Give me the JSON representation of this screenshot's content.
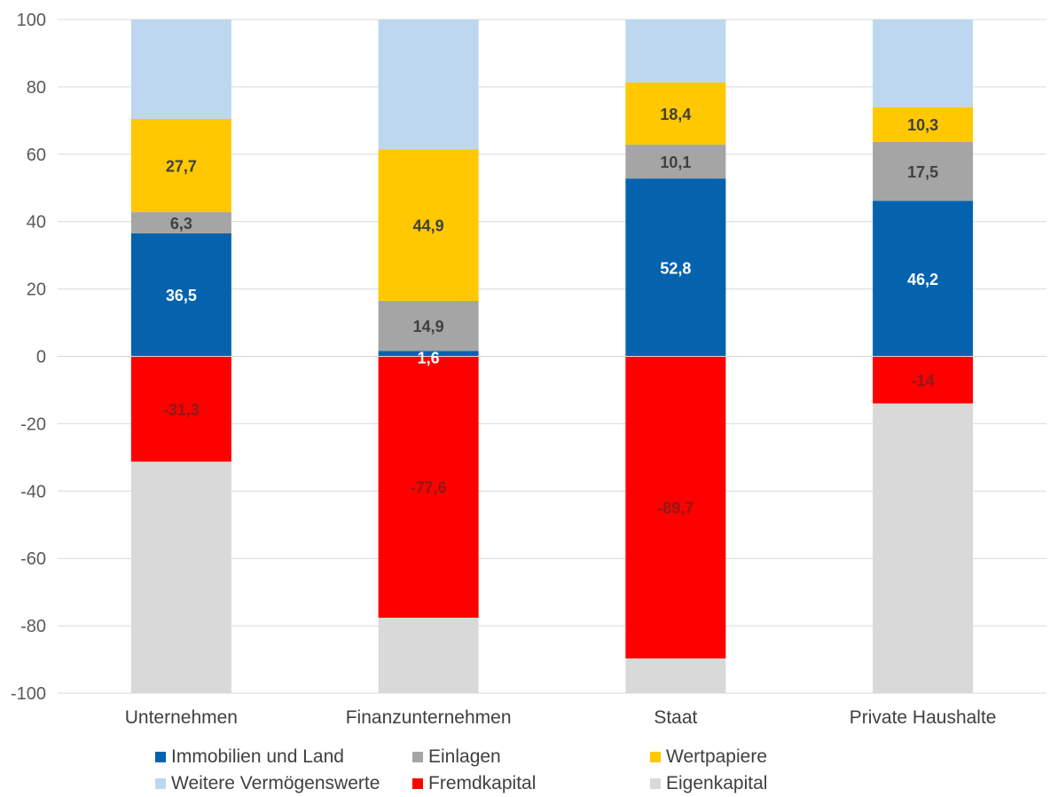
{
  "chart_data": {
    "type": "bar",
    "stacked": true,
    "categories": [
      "Unternehmen",
      "Finanzunternehmen",
      "Staat",
      "Private Haushalte"
    ],
    "ylim": [
      -100,
      100
    ],
    "yticks": [
      100,
      80,
      60,
      40,
      20,
      0,
      -20,
      -40,
      -60,
      -80,
      -100
    ],
    "grid": true,
    "legend_position": "bottom",
    "series": [
      {
        "name": "Immobilien und Land",
        "color": "#0563AE",
        "label_color": "#ffffff",
        "values": [
          36.5,
          1.6,
          52.8,
          46.2
        ],
        "labels": [
          "36,5",
          "1,6",
          "52,8",
          "46,2"
        ]
      },
      {
        "name": "Einlagen",
        "color": "#A5A5A5",
        "label_color": "#404040",
        "values": [
          6.3,
          14.9,
          10.1,
          17.5
        ],
        "labels": [
          "6,3",
          "14,9",
          "10,1",
          "17,5"
        ]
      },
      {
        "name": "Wertpapiere",
        "color": "#FFC800",
        "label_color": "#404040",
        "values": [
          27.7,
          44.9,
          18.4,
          10.3
        ],
        "labels": [
          "27,7",
          "44,9",
          "18,4",
          "10,3"
        ]
      },
      {
        "name": "Weitere Vermögenswerte",
        "color": "#BDD7EE",
        "label_color": "#404040",
        "values": [
          29.5,
          38.6,
          18.7,
          26.0
        ],
        "labels": [
          "",
          "",
          "",
          ""
        ]
      },
      {
        "name": "Fremdkapital",
        "color": "#FF0000",
        "label_color": "#8B1A1A",
        "values": [
          -31.3,
          -77.6,
          -89.7,
          -14
        ],
        "labels": [
          "-31,3",
          "-77,6",
          "-89,7",
          "-14"
        ]
      },
      {
        "name": "Eigenkapital",
        "color": "#D9D9D9",
        "label_color": "#404040",
        "values": [
          -68.7,
          -22.4,
          -10.3,
          -86
        ],
        "labels": [
          "",
          "",
          "",
          ""
        ]
      }
    ]
  },
  "legend": {
    "rows": [
      [
        {
          "label": "Immobilien und Land",
          "color": "#0563AE"
        },
        {
          "label": "Einlagen",
          "color": "#A5A5A5"
        },
        {
          "label": "Wertpapiere",
          "color": "#FFC800"
        }
      ],
      [
        {
          "label": "Weitere Vermögenswerte",
          "color": "#BDD7EE"
        },
        {
          "label": "Fremdkapital",
          "color": "#FF0000"
        },
        {
          "label": "Eigenkapital",
          "color": "#D9D9D9"
        }
      ]
    ]
  }
}
